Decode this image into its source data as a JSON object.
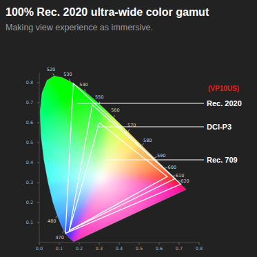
{
  "chart_data": {
    "type": "chromaticity",
    "title": "100% Rec. 2020 ultra-wide color gamut",
    "subtitle": "Making view experience as immersive.",
    "annotations": [
      "(VP10US)"
    ],
    "xlim": [
      0,
      0.8
    ],
    "ylim": [
      0,
      0.85
    ],
    "xticks": [
      {
        "value": 0,
        "label": "0.0"
      },
      0.1,
      0.2,
      0.3,
      0.4,
      0.5,
      0.6,
      0.7,
      0.8
    ],
    "yticks": [
      0.1,
      0.2,
      0.3,
      0.4,
      0.5,
      0.6,
      0.7,
      0.8
    ],
    "grid": false,
    "locus": {
      "x": [
        0.1741,
        0.1733,
        0.1714,
        0.1689,
        0.1644,
        0.1566,
        0.144,
        0.1355,
        0.1241,
        0.1096,
        0.0913,
        0.0687,
        0.0454,
        0.0235,
        0.0082,
        0.0039,
        0.0139,
        0.0389,
        0.0743,
        0.1142,
        0.1547,
        0.1929,
        0.2296,
        0.2658,
        0.3016,
        0.3373,
        0.3731,
        0.4441,
        0.5125,
        0.5752,
        0.627,
        0.6658,
        0.6915,
        0.7079,
        0.719,
        0.73,
        0.7347
      ],
      "y": [
        0.005,
        0.0048,
        0.0051,
        0.0069,
        0.0109,
        0.0177,
        0.0297,
        0.0399,
        0.0578,
        0.0868,
        0.1327,
        0.2007,
        0.295,
        0.4127,
        0.5384,
        0.6548,
        0.7502,
        0.812,
        0.8338,
        0.8262,
        0.8059,
        0.7816,
        0.7543,
        0.7243,
        0.6923,
        0.6589,
        0.6245,
        0.5547,
        0.4866,
        0.4242,
        0.3725,
        0.334,
        0.3083,
        0.292,
        0.2809,
        0.27,
        0.2653
      ],
      "wavelength_labels": [
        null,
        null,
        null,
        null,
        null,
        null,
        null,
        null,
        470,
        null,
        480,
        null,
        null,
        null,
        null,
        null,
        null,
        null,
        520,
        null,
        530,
        null,
        540,
        null,
        550,
        null,
        560,
        570,
        580,
        590,
        600,
        610,
        620,
        null,
        null,
        null,
        null
      ]
    },
    "series": [
      {
        "name": "Rec. 2020",
        "color": "#ffffff",
        "x": [
          0.708,
          0.17,
          0.131
        ],
        "y": [
          0.292,
          0.797,
          0.046
        ]
      },
      {
        "name": "DCI-P3",
        "color": "#ffffff",
        "x": [
          0.68,
          0.265,
          0.15
        ],
        "y": [
          0.32,
          0.69,
          0.06
        ]
      },
      {
        "name": "Rec. 709",
        "color": "#ffffff",
        "x": [
          0.64,
          0.3,
          0.15
        ],
        "y": [
          0.33,
          0.6,
          0.06
        ]
      }
    ]
  }
}
